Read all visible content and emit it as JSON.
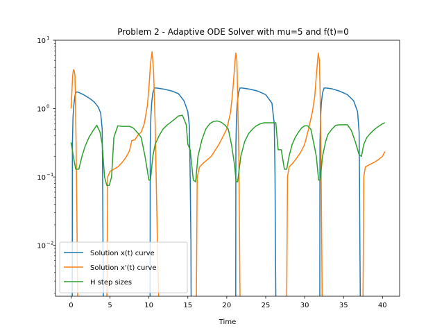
{
  "chart_data": {
    "type": "line",
    "title": "Problem 2 - Adaptive ODE Solver with mu=5 and f(t)=0",
    "xlabel": "Time",
    "ylabel": "",
    "xlim": [
      -2.0,
      42.2
    ],
    "ylim": [
      0.0018,
      10.0
    ],
    "yscale": "log",
    "xticks": [
      0,
      5,
      10,
      15,
      20,
      25,
      30,
      35,
      40
    ],
    "yticks": [
      0.01,
      0.1,
      1,
      10
    ],
    "ytick_labels": [
      "10",
      "10",
      "10",
      "10"
    ],
    "ytick_exponents": [
      "−2",
      "−1",
      "0",
      "1"
    ],
    "legend": "lower-left",
    "grid": false,
    "colors": {
      "x": "#1f77b4",
      "xp": "#ff7f0e",
      "h": "#2ca02c"
    },
    "series": [
      {
        "name": "Solution x(t) curve",
        "color": "#1f77b4",
        "segments": [
          {
            "x": [
              0.15,
              0.17,
              0.25,
              0.35,
              0.5,
              0.65,
              0.8,
              1.0,
              1.5,
              2.0,
              2.5,
              3.0,
              3.5,
              3.8,
              4.0,
              4.05,
              4.1,
              4.15
            ],
            "y": [
              0.0018,
              0.3,
              0.75,
              1.1,
              1.55,
              1.75,
              1.75,
              1.72,
              1.62,
              1.5,
              1.38,
              1.24,
              1.05,
              0.86,
              0.5,
              0.1,
              0.01,
              0.0018
            ]
          },
          {
            "x": [
              10.15,
              10.17,
              10.25,
              10.35,
              10.5,
              10.7,
              11.0,
              12.0,
              13.0,
              13.8,
              14.5,
              15.0,
              15.2,
              15.3,
              15.4,
              15.42
            ],
            "y": [
              0.0018,
              0.3,
              0.75,
              1.2,
              1.7,
              2.0,
              2.0,
              1.92,
              1.8,
              1.65,
              1.3,
              0.9,
              0.55,
              0.1,
              0.01,
              0.0018
            ]
          },
          {
            "x": [
              21.15,
              21.17,
              21.25,
              21.35,
              21.5,
              21.7,
              22.0,
              23.0,
              24.0,
              25.0,
              25.8,
              26.1,
              26.2,
              26.25,
              26.3
            ],
            "y": [
              0.0018,
              0.3,
              0.75,
              1.2,
              1.7,
              2.0,
              2.0,
              1.92,
              1.8,
              1.6,
              1.2,
              0.6,
              0.1,
              0.01,
              0.0018
            ]
          },
          {
            "x": [
              31.95,
              31.97,
              32.05,
              32.15,
              32.3,
              32.5,
              32.8,
              33.5,
              34.5,
              35.5,
              36.3,
              36.8,
              37.0,
              37.05,
              37.1,
              37.15
            ],
            "y": [
              0.0018,
              0.3,
              0.75,
              1.2,
              1.7,
              2.0,
              2.0,
              1.95,
              1.8,
              1.6,
              1.3,
              0.9,
              0.45,
              0.1,
              0.01,
              0.0018
            ]
          }
        ]
      },
      {
        "name": "Solution x'(t) curve",
        "color": "#ff7f0e",
        "segments": [
          {
            "x": [
              0.0,
              0.1,
              0.2,
              0.3,
              0.4,
              0.5,
              0.55,
              0.65,
              0.75,
              0.8,
              0.85
            ],
            "y": [
              1.0,
              1.7,
              3.0,
              3.7,
              3.6,
              3.1,
              1.5,
              0.3,
              0.03,
              0.005,
              0.0018
            ]
          },
          {
            "x": [
              4.6,
              4.7,
              5.0,
              5.5,
              6.0,
              6.5,
              7.0,
              7.5,
              7.8,
              8.2,
              8.6,
              9.0,
              9.4,
              9.8,
              10.0,
              10.2,
              10.4,
              10.6,
              10.8,
              11.1,
              11.25
            ],
            "y": [
              0.0018,
              0.1,
              0.12,
              0.13,
              0.14,
              0.16,
              0.19,
              0.24,
              0.34,
              0.35,
              0.41,
              0.45,
              0.6,
              1.1,
              2.0,
              4.5,
              6.8,
              3.5,
              0.6,
              0.01,
              0.0018
            ]
          },
          {
            "x": [
              16.1,
              16.2,
              16.5,
              17.0,
              18.0,
              19.0,
              20.0,
              20.5,
              20.8,
              21.0,
              21.15,
              21.3,
              21.4,
              21.55,
              21.65,
              21.7
            ],
            "y": [
              0.0018,
              0.1,
              0.14,
              0.16,
              0.2,
              0.3,
              0.5,
              0.9,
              2.0,
              4.0,
              6.5,
              5.0,
              1.5,
              0.2,
              0.01,
              0.0018
            ]
          },
          {
            "x": [
              27.7,
              27.8,
              28.0,
              28.5,
              29.0,
              29.5,
              30.0,
              30.5,
              31.0,
              31.3,
              31.5,
              31.75,
              31.9,
              32.0,
              32.1,
              32.2,
              32.25
            ],
            "y": [
              0.0018,
              0.1,
              0.14,
              0.16,
              0.19,
              0.23,
              0.3,
              0.5,
              0.9,
              1.5,
              3.0,
              6.5,
              5.0,
              1.5,
              0.2,
              0.01,
              0.0018
            ]
          },
          {
            "x": [
              37.5,
              37.6,
              37.8,
              38.5,
              39.0,
              39.5,
              40.0,
              40.3
            ],
            "y": [
              0.0018,
              0.1,
              0.14,
              0.155,
              0.165,
              0.18,
              0.2,
              0.235
            ]
          }
        ]
      },
      {
        "name": "H step sizes",
        "color": "#2ca02c",
        "segments": [
          {
            "x": [
              0.0,
              0.4,
              0.6,
              1.0,
              1.4,
              1.8,
              2.3,
              2.8,
              3.3,
              3.7,
              4.0,
              4.3,
              4.6,
              4.9,
              5.2,
              5.5,
              6.0,
              6.5,
              7.0,
              7.5,
              8.0,
              8.5,
              9.0,
              9.5,
              10.0,
              10.2,
              10.5,
              10.8,
              11.3,
              11.8,
              12.3,
              12.8,
              13.3,
              13.8,
              14.3,
              14.8,
              15.0,
              15.3,
              15.7,
              16.0,
              16.3,
              16.8,
              17.3,
              17.8,
              18.3,
              18.8,
              19.3,
              19.8,
              20.2,
              20.6,
              21.0,
              21.2,
              21.4,
              21.8,
              22.3,
              22.8,
              23.3,
              23.8,
              24.3,
              24.8,
              25.3,
              25.8,
              26.3,
              26.6,
              27.0,
              27.4,
              27.7,
              28.0,
              28.4,
              28.8,
              29.2,
              29.6,
              30.0,
              30.4,
              30.8,
              31.2,
              31.5,
              31.8,
              32.0,
              32.3,
              32.7,
              33.0,
              33.5,
              34.0,
              34.5,
              35.0,
              35.5,
              36.0,
              36.5,
              37.0,
              37.3,
              37.6,
              38.0,
              38.5,
              39.0,
              39.5,
              40.0,
              40.3
            ],
            "y": [
              0.32,
              0.17,
              0.13,
              0.13,
              0.2,
              0.28,
              0.38,
              0.47,
              0.57,
              0.46,
              0.3,
              0.1,
              0.075,
              0.075,
              0.1,
              0.38,
              0.56,
              0.55,
              0.55,
              0.55,
              0.52,
              0.45,
              0.38,
              0.2,
              0.09,
              0.09,
              0.2,
              0.3,
              0.4,
              0.5,
              0.57,
              0.63,
              0.7,
              0.78,
              0.8,
              0.58,
              0.3,
              0.25,
              0.09,
              0.085,
              0.2,
              0.35,
              0.5,
              0.6,
              0.65,
              0.66,
              0.63,
              0.57,
              0.5,
              0.3,
              0.15,
              0.085,
              0.085,
              0.2,
              0.33,
              0.43,
              0.5,
              0.56,
              0.6,
              0.62,
              0.62,
              0.62,
              0.62,
              0.25,
              0.25,
              0.13,
              0.13,
              0.2,
              0.3,
              0.38,
              0.45,
              0.52,
              0.56,
              0.56,
              0.5,
              0.3,
              0.2,
              0.09,
              0.09,
              0.2,
              0.33,
              0.42,
              0.5,
              0.57,
              0.58,
              0.58,
              0.58,
              0.48,
              0.33,
              0.21,
              0.2,
              0.3,
              0.38,
              0.44,
              0.5,
              0.55,
              0.6,
              0.62
            ]
          }
        ]
      }
    ]
  }
}
